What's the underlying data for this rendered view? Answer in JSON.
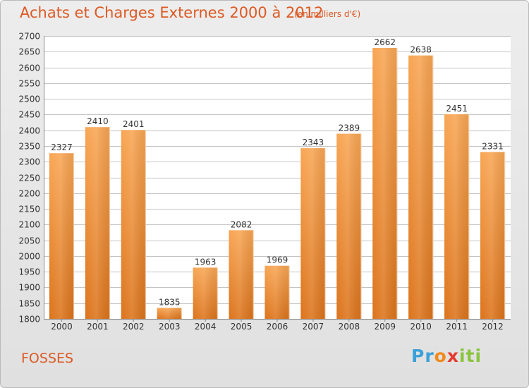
{
  "header": {
    "title": "Achats et Charges Externes 2000 à 2012",
    "unit": "(en milliers d'€)"
  },
  "footer": {
    "city": "FOSSES",
    "logo": "Proxiti"
  },
  "colors": {
    "bar_top": "#f8a654",
    "bar_bottom": "#dc741c",
    "text_accent": "#dc5a24",
    "grid": "#c4c4c4",
    "plot_bg": "#ffffff"
  },
  "chart_data": {
    "type": "bar",
    "title": "Achats et Charges Externes 2000 à 2012",
    "subtitle": "(en milliers d'€)",
    "xlabel": "",
    "ylabel": "",
    "categories": [
      "2000",
      "2001",
      "2002",
      "2003",
      "2004",
      "2005",
      "2006",
      "2007",
      "2008",
      "2009",
      "2010",
      "2011",
      "2012"
    ],
    "values": [
      2327,
      2410,
      2401,
      1835,
      1963,
      2082,
      1969,
      2343,
      2389,
      2662,
      2638,
      2451,
      2331
    ],
    "ylim": [
      1800,
      2700
    ],
    "ytick_step": 50,
    "grid": true,
    "legend": "none"
  }
}
